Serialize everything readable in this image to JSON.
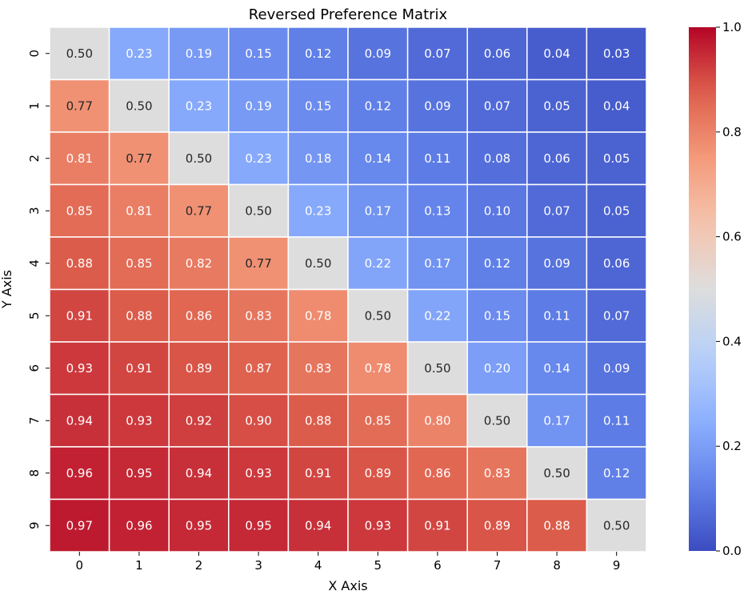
{
  "chart_data": {
    "type": "heatmap",
    "title": "Reversed Preference Matrix",
    "xlabel": "X Axis",
    "ylabel": "Y Axis",
    "x_categories": [
      "0",
      "1",
      "2",
      "3",
      "4",
      "5",
      "6",
      "7",
      "8",
      "9"
    ],
    "y_categories": [
      "0",
      "1",
      "2",
      "3",
      "4",
      "5",
      "6",
      "7",
      "8",
      "9"
    ],
    "values": [
      [
        0.5,
        0.23,
        0.19,
        0.15,
        0.12,
        0.09,
        0.07,
        0.06,
        0.04,
        0.03
      ],
      [
        0.77,
        0.5,
        0.23,
        0.19,
        0.15,
        0.12,
        0.09,
        0.07,
        0.05,
        0.04
      ],
      [
        0.81,
        0.77,
        0.5,
        0.23,
        0.18,
        0.14,
        0.11,
        0.08,
        0.06,
        0.05
      ],
      [
        0.85,
        0.81,
        0.77,
        0.5,
        0.23,
        0.17,
        0.13,
        0.1,
        0.07,
        0.05
      ],
      [
        0.88,
        0.85,
        0.82,
        0.77,
        0.5,
        0.22,
        0.17,
        0.12,
        0.09,
        0.06
      ],
      [
        0.91,
        0.88,
        0.86,
        0.83,
        0.78,
        0.5,
        0.22,
        0.15,
        0.11,
        0.07
      ],
      [
        0.93,
        0.91,
        0.89,
        0.87,
        0.83,
        0.78,
        0.5,
        0.2,
        0.14,
        0.09
      ],
      [
        0.94,
        0.93,
        0.92,
        0.9,
        0.88,
        0.85,
        0.8,
        0.5,
        0.17,
        0.11
      ],
      [
        0.96,
        0.95,
        0.94,
        0.93,
        0.91,
        0.89,
        0.86,
        0.83,
        0.5,
        0.12
      ],
      [
        0.97,
        0.96,
        0.95,
        0.95,
        0.94,
        0.93,
        0.91,
        0.89,
        0.88,
        0.5
      ]
    ],
    "value_range": [
      0.0,
      1.0
    ],
    "colormap": "coolwarm",
    "colorbar": {
      "ticks": [
        0.0,
        0.2,
        0.4,
        0.6,
        0.8,
        1.0
      ],
      "tick_labels": [
        "0.0",
        "0.2",
        "0.4",
        "0.6",
        "0.8",
        "1.0"
      ]
    },
    "cell_border_color": "#ffffff",
    "annotate": true
  }
}
